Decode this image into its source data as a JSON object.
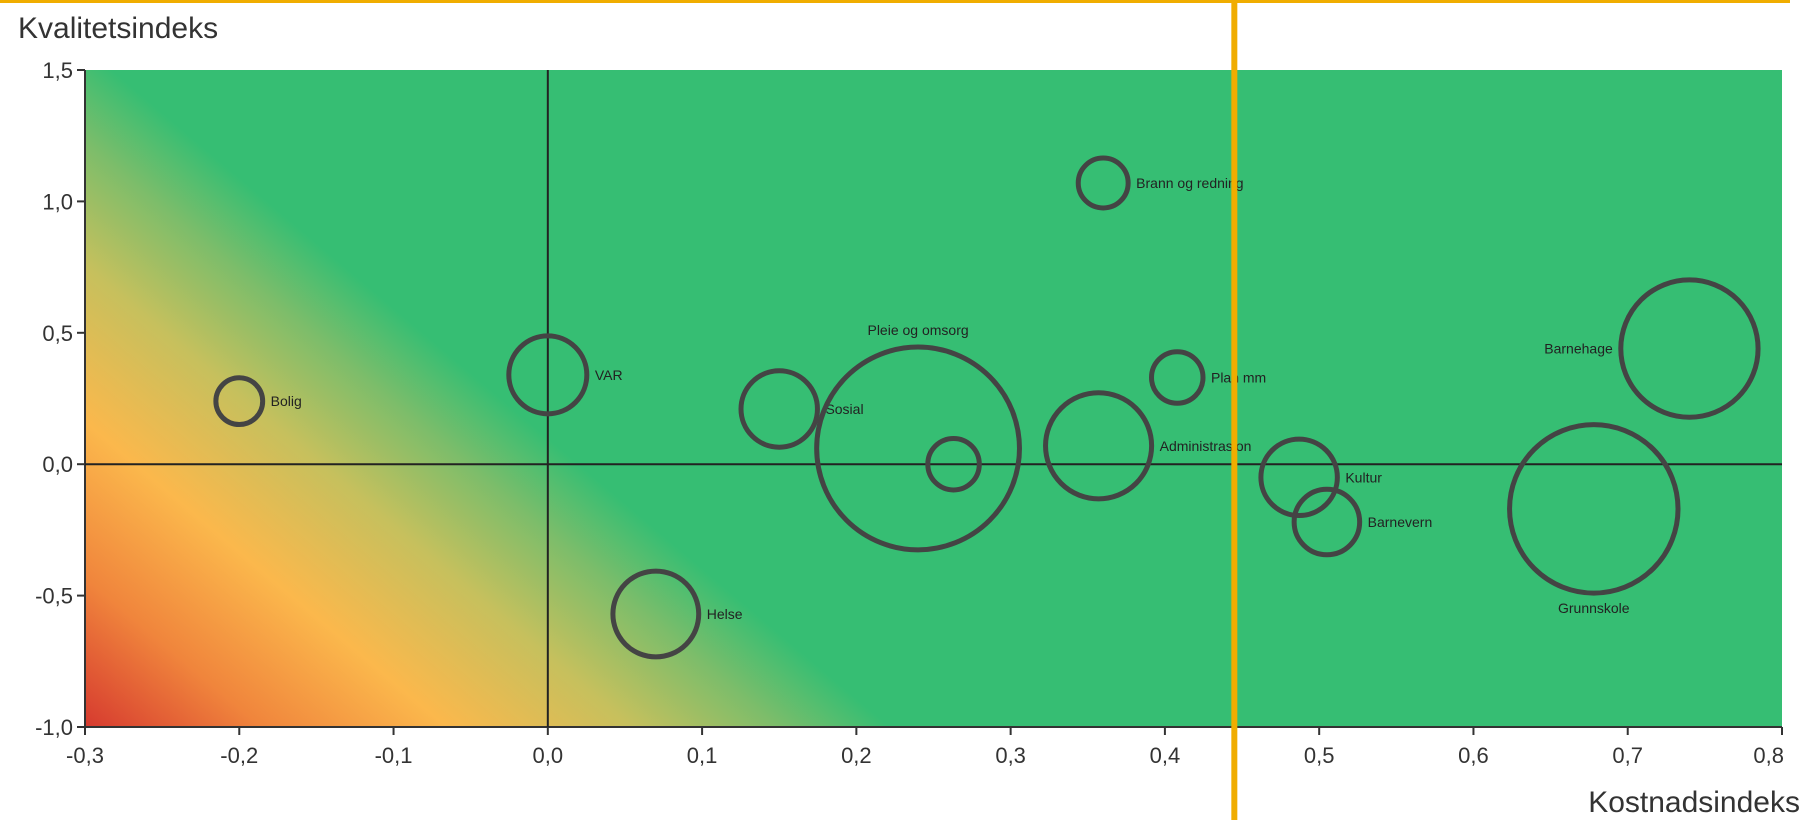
{
  "chart_data": {
    "type": "scatter",
    "subtype": "bubble",
    "xlabel": "Kostnadsindeks",
    "ylabel": "Kvalitetsindeks",
    "xlim": [
      -0.3,
      0.8
    ],
    "ylim": [
      -1.0,
      1.5
    ],
    "x_ticks": [
      "-0,3",
      "-0,2",
      "-0,1",
      "0,0",
      "0,1",
      "0,2",
      "0,3",
      "0,4",
      "0,5",
      "0,6",
      "0,7",
      "0,8"
    ],
    "y_ticks": [
      "1,5",
      "1,0",
      "0,5",
      "0,0",
      "-0,5",
      "-1,0"
    ],
    "grid": false,
    "legend": "none",
    "background": "diagonal gradient from red (bottom-left) through orange and yellow to green (top-right)",
    "colors": {
      "gradient_red": "#d63a2f",
      "gradient_orange": "#fbb84c",
      "gradient_yellow": "#c6c05d",
      "gradient_green": "#36be73",
      "bubble_stroke": "#444444",
      "highlight_line": "#f0ad00"
    },
    "reference_lines": {
      "vertical_x": 0.0,
      "horizontal_y": 0.0,
      "highlight_vertical_x": 0.445
    },
    "bubbles": [
      {
        "label": "Bolig",
        "x": -0.2,
        "y": 0.24,
        "size": 0.3
      },
      {
        "label": "VAR",
        "x": 0.0,
        "y": 0.34,
        "size": 0.5
      },
      {
        "label": "Helse",
        "x": 0.07,
        "y": -0.57,
        "size": 0.55
      },
      {
        "label": "Sosial",
        "x": 0.15,
        "y": 0.21,
        "size": 0.49
      },
      {
        "label": "Pleie og omsorg",
        "x": 0.24,
        "y": 0.06,
        "size": 1.3
      },
      {
        "label": "",
        "x": 0.263,
        "y": 0.0,
        "size": 0.33
      },
      {
        "label": "Brann og redning",
        "x": 0.36,
        "y": 1.07,
        "size": 0.32
      },
      {
        "label": "Administrasjon",
        "x": 0.357,
        "y": 0.07,
        "size": 0.68
      },
      {
        "label": "Plan mm",
        "x": 0.408,
        "y": 0.33,
        "size": 0.33
      },
      {
        "label": "Kultur",
        "x": 0.487,
        "y": -0.05,
        "size": 0.49
      },
      {
        "label": "Barnevern",
        "x": 0.505,
        "y": -0.22,
        "size": 0.42
      },
      {
        "label": "Barnehage",
        "x": 0.74,
        "y": 0.44,
        "size": 0.88
      },
      {
        "label": "Grunnskole",
        "x": 0.678,
        "y": -0.17,
        "size": 1.08
      }
    ]
  }
}
